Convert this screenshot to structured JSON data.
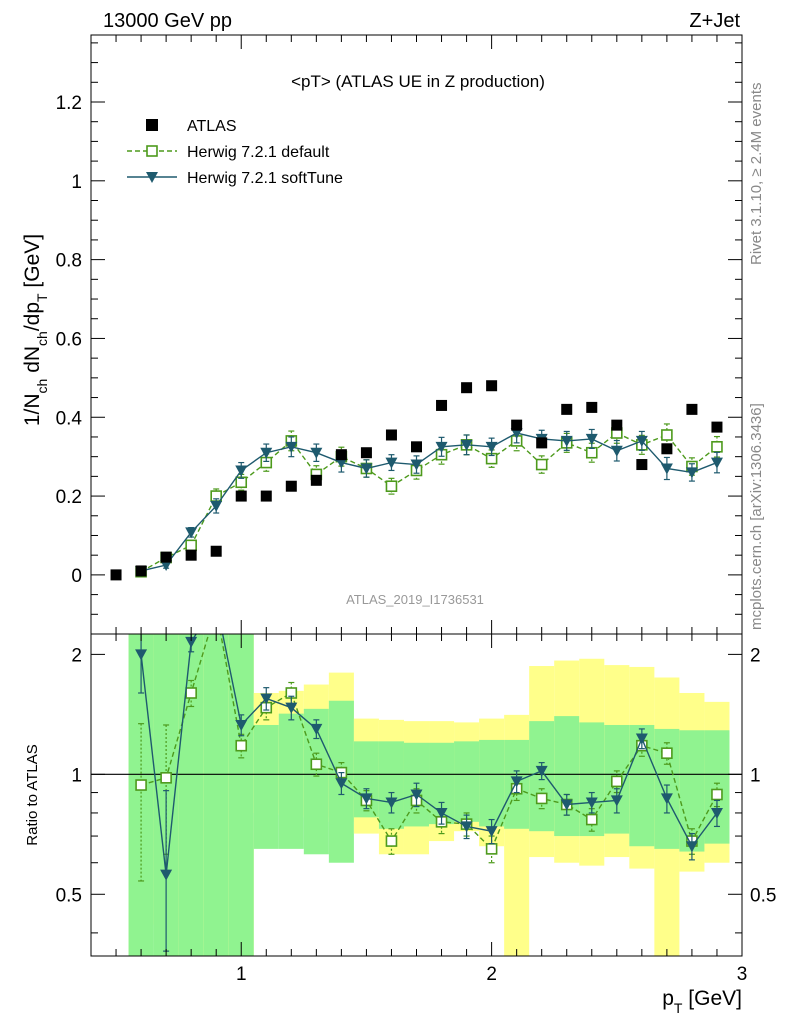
{
  "header": {
    "left_label": "13000 GeV pp",
    "right_label": "Z+Jet"
  },
  "side_labels": {
    "rivet": "Rivet 3.1.10, ≥ 2.4M events",
    "mcplots": "mcplots.cern.ch [arXiv:1306.3436]"
  },
  "chart_data": [
    {
      "type": "scatter",
      "panel": "main",
      "title": "<pT> (ATLAS UE in Z production)",
      "analysis_label": "ATLAS_2019_I1736531",
      "ylabel": "1/N_ch dN_ch/dp_T [GeV]",
      "xlabel": "",
      "xlim": [
        0.4,
        3.0
      ],
      "ylim": [
        -0.15,
        1.37
      ],
      "xticks": [
        "1",
        "2",
        "3"
      ],
      "yticks": [
        "0",
        "0.2",
        "0.4",
        "0.6",
        "0.8",
        "1",
        "1.2"
      ],
      "legend_position": "top-left",
      "series": [
        {
          "name": "ATLAS",
          "style": "data-markers",
          "color": "#000000",
          "x": [
            0.5,
            0.6,
            0.7,
            0.8,
            0.9,
            1.0,
            1.1,
            1.2,
            1.3,
            1.4,
            1.5,
            1.6,
            1.7,
            1.8,
            1.9,
            2.0,
            2.1,
            2.2,
            2.3,
            2.4,
            2.5,
            2.6,
            2.7,
            2.8,
            2.9
          ],
          "y": [
            0.0,
            0.01,
            0.045,
            0.05,
            0.06,
            0.2,
            0.2,
            0.225,
            0.24,
            0.305,
            0.31,
            0.355,
            0.325,
            0.43,
            0.475,
            0.48,
            0.38,
            0.335,
            0.42,
            0.425,
            0.38,
            0.28,
            0.32,
            0.42,
            0.375
          ]
        },
        {
          "name": "Herwig 7.2.1 default",
          "style": "open-square-dashed",
          "color": "#4d9a1c",
          "x": [
            0.6,
            0.7,
            0.8,
            0.9,
            1.0,
            1.1,
            1.2,
            1.3,
            1.4,
            1.5,
            1.6,
            1.7,
            1.8,
            1.9,
            2.0,
            2.1,
            2.2,
            2.3,
            2.4,
            2.5,
            2.6,
            2.7,
            2.8,
            2.9
          ],
          "y": [
            0.008,
            0.044,
            0.075,
            0.2,
            0.235,
            0.285,
            0.34,
            0.255,
            0.3,
            0.27,
            0.225,
            0.265,
            0.305,
            0.33,
            0.295,
            0.34,
            0.28,
            0.335,
            0.31,
            0.36,
            0.33,
            0.355,
            0.275,
            0.325
          ],
          "err": [
            0.005,
            0.008,
            0.012,
            0.018,
            0.02,
            0.022,
            0.025,
            0.022,
            0.024,
            0.022,
            0.02,
            0.022,
            0.024,
            0.025,
            0.022,
            0.025,
            0.022,
            0.024,
            0.024,
            0.026,
            0.024,
            0.028,
            0.022,
            0.026
          ]
        },
        {
          "name": "Herwig 7.2.1 softTune",
          "style": "filled-triangle-solid",
          "color": "#1e5a6e",
          "x": [
            0.6,
            0.7,
            0.8,
            0.9,
            1.0,
            1.1,
            1.2,
            1.3,
            1.4,
            1.5,
            1.6,
            1.7,
            1.8,
            1.9,
            2.0,
            2.1,
            2.2,
            2.3,
            2.4,
            2.5,
            2.6,
            2.7,
            2.8,
            2.9
          ],
          "y": [
            0.01,
            0.025,
            0.108,
            0.175,
            0.265,
            0.31,
            0.325,
            0.31,
            0.285,
            0.27,
            0.285,
            0.28,
            0.325,
            0.33,
            0.325,
            0.36,
            0.345,
            0.34,
            0.345,
            0.315,
            0.34,
            0.27,
            0.26,
            0.285
          ],
          "err": [
            0.005,
            0.008,
            0.012,
            0.018,
            0.02,
            0.022,
            0.025,
            0.022,
            0.024,
            0.022,
            0.02,
            0.022,
            0.024,
            0.025,
            0.022,
            0.025,
            0.022,
            0.024,
            0.024,
            0.026,
            0.024,
            0.028,
            0.022,
            0.026
          ]
        }
      ]
    },
    {
      "type": "line",
      "panel": "ratio",
      "xlabel": "p_T [GeV]",
      "ylabel": "Ratio to ATLAS",
      "xlim": [
        0.4,
        3.0
      ],
      "ylim": [
        0.35,
        2.25
      ],
      "xticks": [
        "1",
        "2",
        "3"
      ],
      "yticks": [
        "0.5",
        "1",
        "2"
      ],
      "reference_line": 1,
      "bands": {
        "bin_edges": [
          0.55,
          0.65,
          0.75,
          0.85,
          0.95,
          1.05,
          1.15,
          1.25,
          1.35,
          1.45,
          1.55,
          1.65,
          1.75,
          1.85,
          1.95,
          2.05,
          2.15,
          2.25,
          2.35,
          2.45,
          2.55,
          2.65,
          2.75,
          2.85,
          2.95
        ],
        "yellow_low": [
          0.35,
          0.42,
          0.35,
          0.35,
          0.35,
          0.8,
          0.79,
          0.78,
          0.76,
          0.71,
          0.63,
          0.63,
          0.68,
          0.72,
          0.66,
          0.35,
          0.62,
          0.6,
          0.59,
          0.62,
          0.58,
          0.35,
          0.57,
          0.6,
          0.49
        ],
        "yellow_high": [
          2.25,
          2.25,
          2.25,
          2.25,
          2.25,
          1.6,
          1.62,
          1.68,
          1.8,
          1.38,
          1.37,
          1.36,
          1.36,
          1.35,
          1.38,
          1.41,
          1.87,
          1.93,
          1.95,
          1.88,
          1.86,
          1.75,
          1.6,
          1.52,
          1.49
        ],
        "green_low": [
          0.35,
          0.35,
          0.35,
          0.35,
          0.35,
          0.65,
          0.65,
          0.63,
          0.6,
          0.78,
          0.73,
          0.74,
          0.75,
          0.76,
          0.74,
          0.73,
          0.72,
          0.7,
          0.7,
          0.71,
          0.66,
          0.65,
          0.64,
          0.67,
          0.79
        ],
        "green_high": [
          2.25,
          2.25,
          2.25,
          2.25,
          2.25,
          1.33,
          1.42,
          1.46,
          1.53,
          1.21,
          1.21,
          1.2,
          1.2,
          1.21,
          1.22,
          1.22,
          1.36,
          1.4,
          1.35,
          1.33,
          1.33,
          1.3,
          1.29,
          1.29,
          1.32
        ]
      },
      "series": [
        {
          "name": "Herwig 7.2.1 default",
          "style": "open-square-dashed",
          "color": "#4d9a1c",
          "x": [
            0.6,
            0.7,
            0.8,
            0.9,
            1.0,
            1.1,
            1.2,
            1.3,
            1.4,
            1.5,
            1.6,
            1.7,
            1.8,
            1.9,
            2.0,
            2.1,
            2.2,
            2.3,
            2.4,
            2.5,
            2.6,
            2.7,
            2.8,
            2.9
          ],
          "y": [
            0.94,
            0.98,
            1.6,
            2.6,
            1.18,
            1.47,
            1.6,
            1.06,
            1.01,
            0.86,
            0.68,
            0.86,
            0.76,
            0.75,
            0.65,
            0.92,
            0.87,
            0.84,
            0.77,
            0.96,
            1.18,
            1.13,
            0.68,
            0.89
          ],
          "err": [
            0.4,
            0.35,
            0.12,
            0.3,
            0.08,
            0.1,
            0.1,
            0.07,
            0.06,
            0.05,
            0.05,
            0.06,
            0.05,
            0.05,
            0.05,
            0.06,
            0.05,
            0.05,
            0.05,
            0.06,
            0.07,
            0.07,
            0.05,
            0.06
          ]
        },
        {
          "name": "Herwig 7.2.1 softTune",
          "style": "filled-triangle-solid",
          "color": "#1e5a6e",
          "x": [
            0.6,
            0.7,
            0.8,
            0.9,
            1.0,
            1.1,
            1.2,
            1.3,
            1.4,
            1.5,
            1.6,
            1.7,
            1.8,
            1.9,
            2.0,
            2.1,
            2.2,
            2.3,
            2.4,
            2.5,
            2.6,
            2.7,
            2.8,
            2.9
          ],
          "y": [
            2.0,
            0.56,
            2.15,
            2.7,
            1.33,
            1.55,
            1.47,
            1.3,
            0.95,
            0.87,
            0.85,
            0.89,
            0.8,
            0.74,
            0.72,
            0.96,
            1.02,
            0.84,
            0.85,
            0.86,
            1.23,
            0.87,
            0.66,
            0.8
          ],
          "err": [
            0.4,
            0.35,
            0.12,
            0.3,
            0.08,
            0.1,
            0.1,
            0.07,
            0.06,
            0.05,
            0.05,
            0.06,
            0.05,
            0.05,
            0.05,
            0.06,
            0.05,
            0.05,
            0.05,
            0.06,
            0.07,
            0.07,
            0.05,
            0.06
          ]
        }
      ]
    }
  ]
}
